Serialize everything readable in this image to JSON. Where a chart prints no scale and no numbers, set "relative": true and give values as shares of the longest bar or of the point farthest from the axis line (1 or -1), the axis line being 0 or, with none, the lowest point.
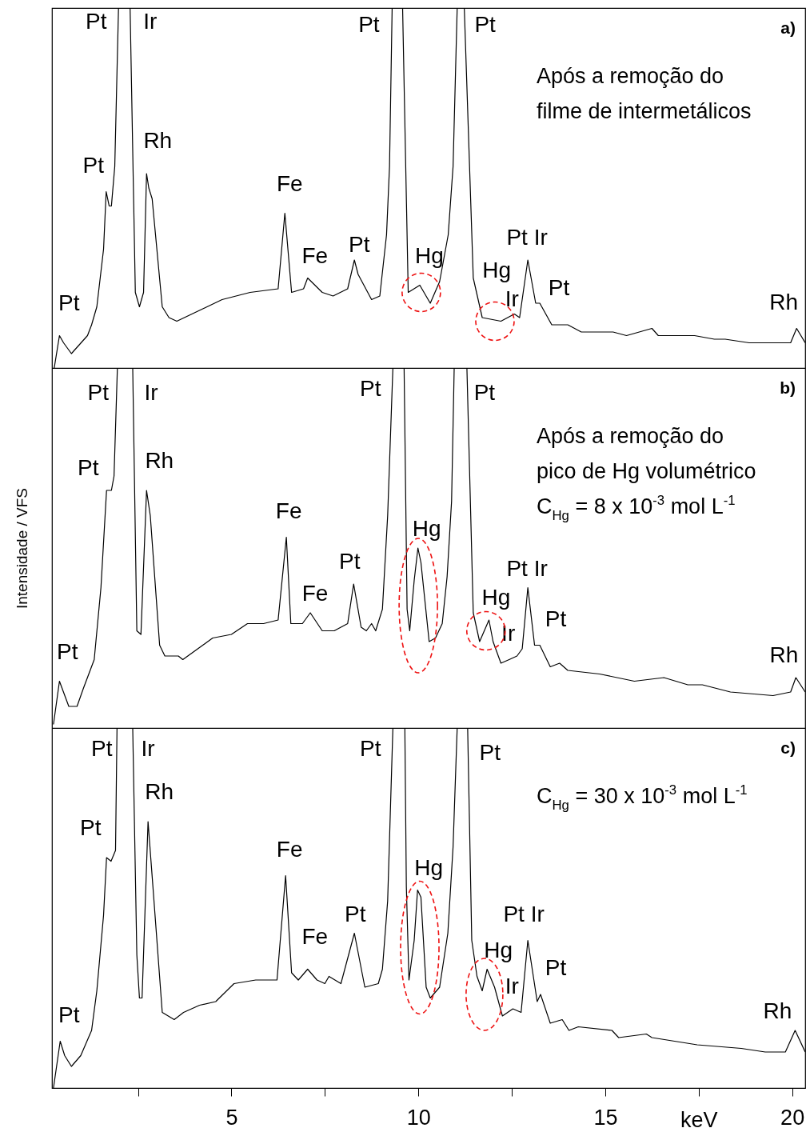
{
  "chart_data": [
    {
      "type": "line",
      "relative": true,
      "color": "#000000",
      "xlim": [
        0.2,
        20.35
      ],
      "tick_labels": false,
      "x": [
        0.26,
        0.4,
        0.51,
        0.72,
        1.15,
        1.26,
        1.4,
        1.58,
        1.65,
        1.73,
        1.79,
        1.88,
        1.98,
        2.29,
        2.43,
        2.54,
        2.65,
        2.73,
        2.79,
        2.88,
        3.15,
        3.33,
        3.54,
        4.75,
        5.5,
        6.25,
        6.43,
        6.61,
        6.93,
        7.04,
        7.43,
        7.72,
        8.11,
        8.29,
        8.39,
        8.75,
        8.97,
        9.15,
        9.23,
        9.3,
        9.58,
        9.73,
        10.04,
        10.32,
        10.57,
        10.8,
        10.93,
        11.04,
        11.23,
        11.47,
        11.71,
        12.21,
        12.57,
        12.71,
        12.93,
        13.14,
        13.25,
        13.57,
        14.0,
        14.36,
        15.21,
        15.57,
        16.25,
        16.42,
        17.39,
        17.92,
        18.21,
        18.85,
        19.24,
        19.35,
        19.96,
        20.12,
        20.35
      ],
      "values": [
        0.0,
        0.09,
        0.07,
        0.04,
        0.09,
        0.12,
        0.17,
        0.33,
        0.49,
        0.45,
        0.45,
        0.56,
        1.0,
        1.0,
        0.21,
        0.17,
        0.21,
        0.54,
        0.5,
        0.47,
        0.17,
        0.14,
        0.13,
        0.19,
        0.21,
        0.22,
        0.43,
        0.21,
        0.22,
        0.25,
        0.21,
        0.2,
        0.22,
        0.3,
        0.26,
        0.19,
        0.2,
        0.37,
        0.56,
        1.0,
        1.0,
        0.21,
        0.23,
        0.18,
        0.24,
        0.37,
        0.56,
        1.0,
        1.0,
        0.25,
        0.14,
        0.13,
        0.15,
        0.14,
        0.3,
        0.18,
        0.18,
        0.12,
        0.12,
        0.1,
        0.1,
        0.09,
        0.11,
        0.09,
        0.09,
        0.08,
        0.08,
        0.07,
        0.07,
        0.07,
        0.07,
        0.11,
        0.07
      ],
      "annotations": [
        "a)",
        "Após a remoção do\nfilme de intermetálicos",
        {
          "text": "Pt",
          "x": 0.4,
          "y": 0.09
        },
        {
          "text": "Pt",
          "x": 1.65,
          "y": 0.49
        },
        {
          "text": "Pt",
          "x": 1.98,
          "y": 1.0
        },
        {
          "text": "Ir",
          "x": 2.29,
          "y": 1.0
        },
        {
          "text": "Rh",
          "x": 2.73,
          "y": 0.54
        },
        {
          "text": "Fe",
          "x": 6.43,
          "y": 0.43
        },
        {
          "text": "Fe",
          "x": 7.04,
          "y": 0.25
        },
        {
          "text": "Pt",
          "x": 8.29,
          "y": 0.3
        },
        {
          "text": "Pt",
          "x": 9.3,
          "y": 1.0
        },
        {
          "text": "Hg",
          "x": 10.04,
          "y": 0.23
        },
        {
          "text": "Pt",
          "x": 11.23,
          "y": 1.0
        },
        {
          "text": "Hg",
          "x": 11.71,
          "y": 0.14
        },
        {
          "text": "Ir",
          "x": 12.57,
          "y": 0.15
        },
        {
          "text": "Pt Ir",
          "x": 12.93,
          "y": 0.3
        },
        {
          "text": "Pt",
          "x": 13.25,
          "y": 0.18
        },
        {
          "text": "Rh",
          "x": 20.12,
          "y": 0.11
        }
      ]
    },
    {
      "type": "line",
      "relative": true,
      "color": "#000000",
      "xlim": [
        0.2,
        20.35
      ],
      "tick_labels": false,
      "ylabel": "Intensidade / VFS",
      "x": [
        0.24,
        0.4,
        0.65,
        0.87,
        1.04,
        1.33,
        1.51,
        1.66,
        1.79,
        1.86,
        1.95,
        2.36,
        2.47,
        2.58,
        2.73,
        2.83,
        3.08,
        3.22,
        3.58,
        3.7,
        4.5,
        5.0,
        5.43,
        5.86,
        6.25,
        6.47,
        6.59,
        6.9,
        7.11,
        7.43,
        7.75,
        8.11,
        8.27,
        8.47,
        8.61,
        8.75,
        8.86,
        9.04,
        9.18,
        9.32,
        9.62,
        9.7,
        9.77,
        9.89,
        9.99,
        10.07,
        10.29,
        10.46,
        10.64,
        10.77,
        10.89,
        10.96,
        11.3,
        11.47,
        11.64,
        11.89,
        12.0,
        12.21,
        12.43,
        12.64,
        12.78,
        12.93,
        13.11,
        13.25,
        13.53,
        13.78,
        14.0,
        14.85,
        15.78,
        16.57,
        17.21,
        17.6,
        18.35,
        19.49,
        19.96,
        20.1,
        20.35
      ],
      "values": [
        0.01,
        0.13,
        0.06,
        0.06,
        0.11,
        0.19,
        0.39,
        0.66,
        0.66,
        0.7,
        1.0,
        1.0,
        0.27,
        0.26,
        0.66,
        0.59,
        0.23,
        0.2,
        0.2,
        0.19,
        0.25,
        0.26,
        0.29,
        0.29,
        0.3,
        0.53,
        0.29,
        0.29,
        0.32,
        0.27,
        0.27,
        0.29,
        0.4,
        0.28,
        0.27,
        0.29,
        0.27,
        0.33,
        0.59,
        1.0,
        1.0,
        0.33,
        0.27,
        0.41,
        0.5,
        0.46,
        0.24,
        0.25,
        0.29,
        0.42,
        0.63,
        1.0,
        1.0,
        0.32,
        0.24,
        0.3,
        0.24,
        0.18,
        0.19,
        0.2,
        0.22,
        0.39,
        0.23,
        0.23,
        0.17,
        0.18,
        0.16,
        0.15,
        0.13,
        0.14,
        0.12,
        0.12,
        0.1,
        0.09,
        0.1,
        0.14,
        0.1
      ],
      "annotations": [
        "b)",
        "Após a remoção do\npico de Hg volumétrico",
        "C$_{Hg}$ = 8 x 10$^{-3}$ mol L$^{-1}$",
        {
          "text": "Pt",
          "x": 0.4,
          "y": 0.13
        },
        {
          "text": "Pt",
          "x": 1.66,
          "y": 0.66
        },
        {
          "text": "Pt",
          "x": 1.95,
          "y": 1.0
        },
        {
          "text": "Ir",
          "x": 2.36,
          "y": 1.0
        },
        {
          "text": "Rh",
          "x": 2.73,
          "y": 0.66
        },
        {
          "text": "Fe",
          "x": 6.47,
          "y": 0.53
        },
        {
          "text": "Fe",
          "x": 7.11,
          "y": 0.32
        },
        {
          "text": "Pt",
          "x": 8.27,
          "y": 0.4
        },
        {
          "text": "Pt",
          "x": 9.32,
          "y": 1.0
        },
        {
          "text": "Hg",
          "x": 9.99,
          "y": 0.5
        },
        {
          "text": "Pt",
          "x": 11.3,
          "y": 1.0
        },
        {
          "text": "Hg",
          "x": 11.89,
          "y": 0.3
        },
        {
          "text": "Ir",
          "x": 12.0,
          "y": 0.24
        },
        {
          "text": "Pt Ir",
          "x": 12.93,
          "y": 0.39
        },
        {
          "text": "Pt",
          "x": 13.25,
          "y": 0.23
        },
        {
          "text": "Rh",
          "x": 20.1,
          "y": 0.14
        }
      ]
    },
    {
      "type": "line",
      "relative": true,
      "color": "#000000",
      "xlim": [
        0.2,
        20.35
      ],
      "tick_labels": "x",
      "xlabel": "keV",
      "xticks": [
        {
          "value": 2.5,
          "label": null
        },
        5,
        {
          "value": 7.5,
          "label": null
        },
        10,
        {
          "value": 12.5,
          "label": null
        },
        15,
        {
          "value": 17.5,
          "label": null
        },
        20
      ],
      "x": [
        0.24,
        0.42,
        0.54,
        0.72,
        0.97,
        1.26,
        1.4,
        1.58,
        1.66,
        1.78,
        1.9,
        1.94,
        2.36,
        2.47,
        2.54,
        2.61,
        2.77,
        2.9,
        3.15,
        3.47,
        3.72,
        4.15,
        4.58,
        5.07,
        5.65,
        6.22,
        6.45,
        6.61,
        6.79,
        7.04,
        7.29,
        7.5,
        7.61,
        7.93,
        8.29,
        8.57,
        8.93,
        9.04,
        9.18,
        9.32,
        9.64,
        9.68,
        9.75,
        9.89,
        9.98,
        10.07,
        10.21,
        10.32,
        10.57,
        10.79,
        10.93,
        11.04,
        11.32,
        11.43,
        11.57,
        11.71,
        11.84,
        12.04,
        12.25,
        12.53,
        12.75,
        12.93,
        13.18,
        13.27,
        13.53,
        13.85,
        14.03,
        14.28,
        15.18,
        15.36,
        16.1,
        16.25,
        17.46,
        18.64,
        19.28,
        19.82,
        20.08,
        20.35
      ],
      "values": [
        0.0,
        0.13,
        0.09,
        0.06,
        0.09,
        0.16,
        0.27,
        0.48,
        0.64,
        0.63,
        0.66,
        1.0,
        1.0,
        0.37,
        0.25,
        0.25,
        0.74,
        0.56,
        0.21,
        0.19,
        0.21,
        0.23,
        0.24,
        0.29,
        0.3,
        0.3,
        0.59,
        0.32,
        0.3,
        0.33,
        0.3,
        0.29,
        0.31,
        0.29,
        0.43,
        0.28,
        0.29,
        0.33,
        0.52,
        1.0,
        1.0,
        0.56,
        0.3,
        0.41,
        0.55,
        0.53,
        0.28,
        0.25,
        0.28,
        0.43,
        0.67,
        1.0,
        1.0,
        0.41,
        0.31,
        0.27,
        0.33,
        0.28,
        0.2,
        0.22,
        0.21,
        0.41,
        0.24,
        0.26,
        0.18,
        0.19,
        0.16,
        0.17,
        0.16,
        0.14,
        0.15,
        0.14,
        0.12,
        0.11,
        0.1,
        0.1,
        0.16,
        0.1
      ],
      "annotations": [
        "c)",
        "C$_{Hg}$ = 30 x 10$^{-3}$ mol L$^{-1}$",
        {
          "text": "Pt",
          "x": 0.42,
          "y": 0.13
        },
        {
          "text": "Pt",
          "x": 1.66,
          "y": 0.64
        },
        {
          "text": "Pt",
          "x": 1.94,
          "y": 1.0
        },
        {
          "text": "Ir",
          "x": 2.36,
          "y": 1.0
        },
        {
          "text": "Rh",
          "x": 2.77,
          "y": 0.74
        },
        {
          "text": "Fe",
          "x": 6.45,
          "y": 0.59
        },
        {
          "text": "Fe",
          "x": 7.04,
          "y": 0.33
        },
        {
          "text": "Pt",
          "x": 8.29,
          "y": 0.43
        },
        {
          "text": "Pt",
          "x": 9.32,
          "y": 1.0
        },
        {
          "text": "Hg",
          "x": 9.98,
          "y": 0.55
        },
        {
          "text": "Pt",
          "x": 11.32,
          "y": 1.0
        },
        {
          "text": "Hg",
          "x": 11.84,
          "y": 0.33
        },
        {
          "text": "Ir",
          "x": 12.25,
          "y": 0.2
        },
        {
          "text": "Pt Ir",
          "x": 12.93,
          "y": 0.41
        },
        {
          "text": "Pt",
          "x": 13.27,
          "y": 0.26
        },
        {
          "text": "Rh",
          "x": 20.08,
          "y": 0.16
        }
      ]
    }
  ]
}
